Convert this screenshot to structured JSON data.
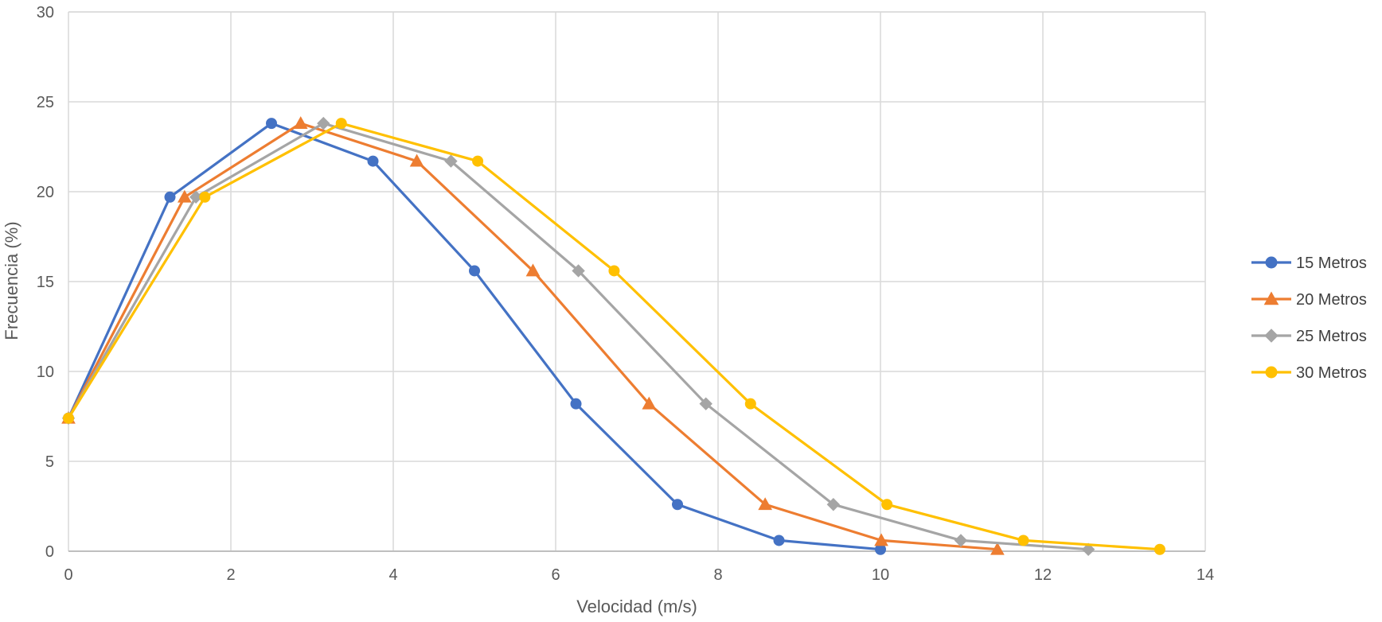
{
  "chart_data": {
    "type": "line",
    "title": "",
    "xlabel": "Velocidad (m/s)",
    "ylabel": "Frecuencia (%)",
    "xlim": [
      0,
      14
    ],
    "ylim": [
      0,
      30
    ],
    "xticks": [
      0,
      2,
      4,
      6,
      8,
      10,
      12,
      14
    ],
    "yticks": [
      0,
      5,
      10,
      15,
      20,
      25,
      30
    ],
    "grid": true,
    "legend_position": "right",
    "series": [
      {
        "name": "15 Metros",
        "color": "#4472C4",
        "marker": "circle",
        "x": [
          0,
          1.25,
          2.5,
          3.75,
          5.0,
          6.25,
          7.5,
          8.75,
          10.0
        ],
        "y": [
          7.4,
          19.7,
          23.8,
          21.7,
          15.6,
          8.2,
          2.6,
          0.6,
          0.1
        ]
      },
      {
        "name": "20 Metros",
        "color": "#ED7D31",
        "marker": "triangle",
        "x": [
          0,
          1.43,
          2.86,
          4.29,
          5.72,
          7.15,
          8.58,
          10.01,
          11.44
        ],
        "y": [
          7.4,
          19.7,
          23.8,
          21.7,
          15.6,
          8.2,
          2.6,
          0.6,
          0.1
        ]
      },
      {
        "name": "25 Metros",
        "color": "#A5A5A5",
        "marker": "diamond",
        "x": [
          0,
          1.57,
          3.14,
          4.71,
          6.28,
          7.85,
          9.42,
          10.99,
          12.56
        ],
        "y": [
          7.4,
          19.7,
          23.8,
          21.7,
          15.6,
          8.2,
          2.6,
          0.6,
          0.1
        ]
      },
      {
        "name": "30 Metros",
        "color": "#FFC000",
        "marker": "circle",
        "x": [
          0,
          1.68,
          3.36,
          5.04,
          6.72,
          8.4,
          10.08,
          11.76,
          13.44
        ],
        "y": [
          7.4,
          19.7,
          23.8,
          21.7,
          15.6,
          8.2,
          2.6,
          0.6,
          0.1
        ]
      }
    ]
  }
}
